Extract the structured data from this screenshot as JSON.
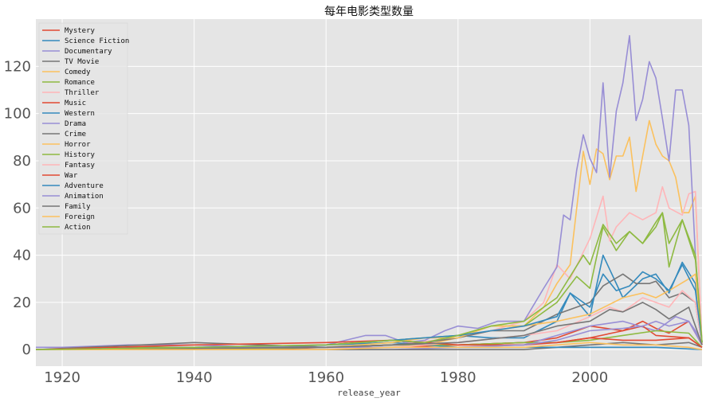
{
  "chart_data": {
    "type": "line",
    "title": "每年电影类型数量",
    "xlabel": "release_year",
    "ylabel": "",
    "xlim": [
      1916,
      2017
    ],
    "ylim": [
      -7,
      140
    ],
    "xticks": [
      1920,
      1940,
      1960,
      1980,
      2000
    ],
    "yticks": [
      0,
      20,
      40,
      60,
      80,
      100,
      120
    ],
    "grid": true,
    "legend_position": "top-left",
    "series": [
      {
        "name": "Mystery",
        "color": "#E24A33",
        "x": [
          1916,
          1930,
          1950,
          1960,
          1970,
          1980,
          1990,
          1995,
          2000,
          2005,
          2008,
          2010,
          2012,
          2015,
          2017
        ],
        "y": [
          0,
          0,
          0,
          1,
          1,
          2,
          3,
          5,
          10,
          8,
          12,
          9,
          7,
          12,
          2
        ]
      },
      {
        "name": "Science Fiction",
        "color": "#348ABD",
        "x": [
          1916,
          1940,
          1960,
          1970,
          1975,
          1980,
          1985,
          1990,
          1995,
          1997,
          2000,
          2002,
          2005,
          2008,
          2010,
          2012,
          2014,
          2016,
          2017
        ],
        "y": [
          0,
          0,
          1,
          2,
          3,
          6,
          5,
          5,
          12,
          24,
          14,
          40,
          22,
          30,
          32,
          24,
          37,
          28,
          2
        ]
      },
      {
        "name": "Documentary",
        "color": "#988ED5",
        "x": [
          1916,
          1960,
          1970,
          1980,
          1990,
          1995,
          2000,
          2005,
          2010,
          2013,
          2015,
          2016,
          2017
        ],
        "y": [
          0,
          0,
          0,
          1,
          2,
          6,
          10,
          12,
          8,
          14,
          12,
          8,
          2
        ]
      },
      {
        "name": "TV Movie",
        "color": "#777777",
        "x": [
          1916,
          1990,
          1995,
          2000,
          2005,
          2010,
          2015,
          2017
        ],
        "y": [
          0,
          0,
          1,
          2,
          3,
          2,
          3,
          1
        ]
      },
      {
        "name": "Comedy",
        "color": "#FBC15E",
        "x": [
          1916,
          1920,
          1930,
          1940,
          1950,
          1960,
          1970,
          1975,
          1980,
          1985,
          1990,
          1993,
          1995,
          1997,
          1999,
          2000,
          2001,
          2002,
          2003,
          2004,
          2005,
          2006,
          2007,
          2008,
          2009,
          2010,
          2011,
          2012,
          2013,
          2014,
          2015,
          2016,
          2017
        ],
        "y": [
          0,
          0,
          1,
          1,
          1,
          2,
          3,
          2,
          5,
          8,
          10,
          18,
          28,
          36,
          84,
          70,
          85,
          83,
          72,
          82,
          82,
          90,
          67,
          82,
          97,
          87,
          82,
          80,
          73,
          58,
          58,
          65,
          2
        ]
      },
      {
        "name": "Romance",
        "color": "#8EBA42",
        "x": [
          1916,
          1930,
          1940,
          1950,
          1960,
          1970,
          1980,
          1985,
          1990,
          1995,
          1998,
          2000,
          2002,
          2004,
          2006,
          2008,
          2010,
          2011,
          2012,
          2014,
          2016,
          2017
        ],
        "y": [
          0,
          1,
          1,
          1,
          2,
          4,
          6,
          10,
          10,
          20,
          31,
          26,
          52,
          42,
          50,
          45,
          54,
          58,
          45,
          55,
          38,
          3
        ]
      },
      {
        "name": "Thriller",
        "color": "#FFB5B8",
        "x": [
          1916,
          1960,
          1970,
          1980,
          1985,
          1990,
          1993,
          1995,
          1997,
          2000,
          2002,
          2003,
          2004,
          2006,
          2008,
          2010,
          2011,
          2012,
          2014,
          2015,
          2016,
          2017
        ],
        "y": [
          0,
          1,
          2,
          5,
          8,
          12,
          20,
          36,
          30,
          47,
          65,
          46,
          52,
          58,
          55,
          58,
          69,
          60,
          57,
          66,
          67,
          2
        ]
      },
      {
        "name": "Music",
        "color": "#E24A33",
        "x": [
          1916,
          1940,
          1960,
          1970,
          1980,
          1990,
          1995,
          2000,
          2005,
          2008,
          2010,
          2015,
          2017
        ],
        "y": [
          0,
          1,
          1,
          2,
          2,
          3,
          3,
          5,
          8,
          10,
          6,
          5,
          1
        ]
      },
      {
        "name": "Western",
        "color": "#348ABD",
        "x": [
          1916,
          1940,
          1950,
          1960,
          1970,
          1975,
          1980,
          1990,
          2000,
          2010,
          2017
        ],
        "y": [
          0,
          1,
          1,
          2,
          3,
          2,
          1,
          1,
          1,
          1,
          0
        ]
      },
      {
        "name": "Drama",
        "color": "#988ED5",
        "x": [
          1916,
          1920,
          1930,
          1940,
          1950,
          1960,
          1963,
          1966,
          1969,
          1972,
          1975,
          1978,
          1980,
          1983,
          1986,
          1990,
          1993,
          1995,
          1996,
          1997,
          1998,
          1999,
          2000,
          2001,
          2002,
          2003,
          2004,
          2005,
          2006,
          2007,
          2008,
          2009,
          2010,
          2011,
          2012,
          2013,
          2014,
          2015,
          2016,
          2017
        ],
        "y": [
          1,
          1,
          2,
          2,
          1,
          2,
          4,
          6,
          6,
          3,
          4,
          8,
          10,
          9,
          12,
          12,
          26,
          35,
          57,
          55,
          76,
          91,
          81,
          75,
          113,
          73,
          101,
          113,
          133,
          97,
          106,
          122,
          115,
          98,
          80,
          110,
          110,
          95,
          40,
          3
        ]
      },
      {
        "name": "Crime",
        "color": "#777777",
        "x": [
          1916,
          1940,
          1960,
          1970,
          1975,
          1980,
          1985,
          1990,
          1995,
          2000,
          2002,
          2005,
          2007,
          2009,
          2010,
          2012,
          2014,
          2016,
          2017
        ],
        "y": [
          0,
          3,
          1,
          2,
          3,
          5,
          8,
          8,
          15,
          20,
          27,
          32,
          28,
          28,
          29,
          22,
          24,
          20,
          2
        ]
      },
      {
        "name": "Horror",
        "color": "#FBC15E",
        "x": [
          1916,
          1960,
          1970,
          1975,
          1980,
          1985,
          1990,
          1995,
          2000,
          2005,
          2008,
          2010,
          2012,
          2015,
          2016,
          2017
        ],
        "y": [
          0,
          1,
          3,
          5,
          5,
          10,
          10,
          12,
          15,
          22,
          24,
          22,
          25,
          30,
          32,
          3
        ]
      },
      {
        "name": "History",
        "color": "#8EBA42",
        "x": [
          1916,
          1940,
          1960,
          1970,
          1980,
          1990,
          1995,
          2000,
          2005,
          2010,
          2015,
          2017
        ],
        "y": [
          0,
          0,
          1,
          2,
          2,
          3,
          3,
          4,
          6,
          8,
          7,
          1
        ]
      },
      {
        "name": "Fantasy",
        "color": "#FFB5B8",
        "x": [
          1916,
          1960,
          1970,
          1980,
          1990,
          1995,
          2000,
          2003,
          2005,
          2008,
          2010,
          2012,
          2014,
          2016,
          2017
        ],
        "y": [
          0,
          1,
          1,
          3,
          6,
          8,
          14,
          18,
          16,
          22,
          20,
          18,
          25,
          20,
          2
        ]
      },
      {
        "name": "War",
        "color": "#E24A33",
        "x": [
          1916,
          1940,
          1960,
          1970,
          1980,
          1990,
          1995,
          2000,
          2005,
          2010,
          2015,
          2017
        ],
        "y": [
          0,
          2,
          3,
          4,
          2,
          2,
          3,
          5,
          4,
          4,
          5,
          1
        ]
      },
      {
        "name": "Adventure",
        "color": "#348ABD",
        "x": [
          1916,
          1940,
          1960,
          1970,
          1980,
          1985,
          1990,
          1995,
          1997,
          2000,
          2002,
          2004,
          2006,
          2008,
          2010,
          2012,
          2014,
          2016,
          2017
        ],
        "y": [
          0,
          1,
          2,
          4,
          6,
          8,
          10,
          14,
          24,
          18,
          32,
          25,
          27,
          33,
          30,
          25,
          36,
          25,
          3
        ]
      },
      {
        "name": "Animation",
        "color": "#988ED5",
        "x": [
          1916,
          1940,
          1960,
          1970,
          1980,
          1990,
          1995,
          2000,
          2005,
          2008,
          2010,
          2012,
          2015,
          2017
        ],
        "y": [
          0,
          1,
          1,
          1,
          1,
          2,
          4,
          8,
          9,
          10,
          12,
          10,
          12,
          2
        ]
      },
      {
        "name": "Family",
        "color": "#777777",
        "x": [
          1916,
          1960,
          1970,
          1980,
          1990,
          1995,
          2000,
          2003,
          2005,
          2008,
          2010,
          2012,
          2015,
          2017
        ],
        "y": [
          0,
          1,
          2,
          3,
          6,
          10,
          12,
          17,
          16,
          20,
          17,
          13,
          18,
          2
        ]
      },
      {
        "name": "Foreign",
        "color": "#FBC15E",
        "x": [
          1916,
          1960,
          1970,
          1980,
          1990,
          1995,
          2000,
          2005,
          2010,
          2015,
          2017
        ],
        "y": [
          0,
          0,
          1,
          1,
          1,
          2,
          3,
          2,
          2,
          1,
          0
        ]
      },
      {
        "name": "Action",
        "color": "#8EBA42",
        "x": [
          1916,
          1940,
          1960,
          1970,
          1975,
          1980,
          1985,
          1990,
          1993,
          1995,
          1997,
          1999,
          2000,
          2002,
          2004,
          2006,
          2008,
          2010,
          2011,
          2012,
          2014,
          2016,
          2017
        ],
        "y": [
          0,
          1,
          2,
          4,
          3,
          6,
          10,
          12,
          18,
          22,
          31,
          40,
          36,
          53,
          45,
          50,
          45,
          52,
          58,
          35,
          55,
          40,
          3
        ]
      }
    ]
  }
}
